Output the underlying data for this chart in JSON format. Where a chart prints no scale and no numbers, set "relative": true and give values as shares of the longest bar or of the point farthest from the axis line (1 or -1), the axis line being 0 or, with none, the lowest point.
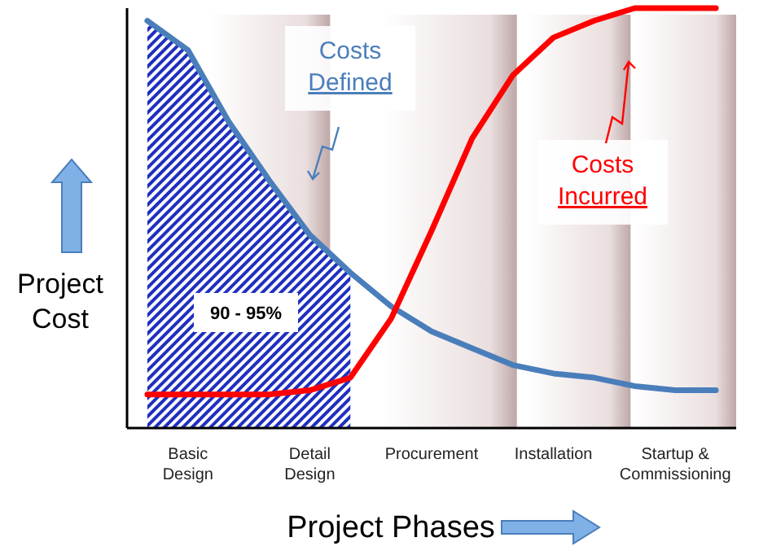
{
  "chart_data": {
    "type": "line",
    "relative": true,
    "xlabel": "Project Phases",
    "ylabel": "Project Cost",
    "categories": [
      null,
      "Basic Design",
      null,
      null,
      "Detail Design",
      null,
      null,
      "Procurement",
      null,
      null,
      "Installation",
      null,
      null,
      "Startup & Commissioning",
      null
    ],
    "series": [
      {
        "color": "#4a7ebb",
        "values": [
          0.97,
          0.9,
          0.73,
          0.59,
          0.46,
          0.37,
          0.29,
          0.23,
          0.19,
          0.15,
          0.13,
          0.12,
          0.1,
          0.09,
          0.09
        ]
      },
      {
        "color": "#ff0000",
        "values": [
          0.08,
          0.08,
          0.08,
          0.08,
          0.09,
          0.12,
          0.26,
          0.47,
          0.69,
          0.84,
          0.93,
          0.97,
          1,
          1,
          1
        ]
      },
      {
        "type": "area",
        "color": "#1f2fbf",
        "values": [
          0.97,
          0.9,
          0.73,
          0.59,
          0.46,
          0.37,
          null,
          null,
          null,
          null,
          null,
          null,
          null,
          null,
          null
        ]
      }
    ],
    "annotations": [
      "Costs Defined",
      "Costs Incurred",
      "90 - 95%"
    ]
  }
}
